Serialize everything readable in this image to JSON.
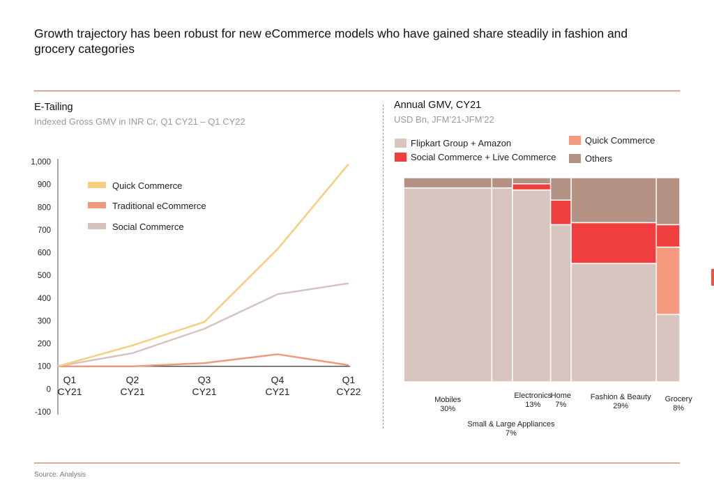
{
  "headline": "Growth trajectory has been robust for new eCommerce models who have gained share steadily in fashion and grocery categories",
  "source": "Source: Analysis",
  "colors": {
    "rule": "#e05a4a",
    "quick_commerce_line": "#f5cf7e",
    "traditional_line": "#f0987a",
    "social_line": "#d6c3bd",
    "flipkart_amazon": "#d9c5bf",
    "social_live": "#ee3e3e",
    "quick_commerce_block": "#f59a7e",
    "others": "#b39283"
  },
  "chart_data": [
    {
      "type": "line",
      "title": "E-Tailing",
      "subtitle": "Indexed Gross GMV in INR Cr, Q1 CY21 – Q1 CY22",
      "xlabel": "",
      "ylabel": "",
      "categories": [
        [
          "Q1",
          "CY21"
        ],
        [
          "Q2",
          "CY21"
        ],
        [
          "Q3",
          "CY21"
        ],
        [
          "Q4",
          "CY21"
        ],
        [
          "Q1",
          "CY22"
        ]
      ],
      "y_ticks": [
        "-100",
        "0",
        "100",
        "200",
        "300",
        "400",
        "500",
        "600",
        "700",
        "800",
        "900",
        "1,000"
      ],
      "ylim": [
        -100,
        1000
      ],
      "grid": false,
      "legend_position": "top-left",
      "series": [
        {
          "name": "Quick Commerce",
          "color": "#f5cf7e",
          "values": [
            100,
            192,
            295,
            615,
            990
          ]
        },
        {
          "name": "Traditional eCommerce",
          "color": "#f0987a",
          "values": [
            100,
            100,
            114,
            153,
            105
          ]
        },
        {
          "name": "Social Commerce",
          "color": "#d6c3bd",
          "values": [
            100,
            158,
            265,
            417,
            465
          ]
        }
      ]
    },
    {
      "type": "mekko",
      "title": "Annual GMV, CY21",
      "subtitle": "USD Bn, JFM’21-JFM’22",
      "legend": [
        {
          "name": "Flipkart Group + Amazon",
          "color": "#d9c5bf"
        },
        {
          "name": "Social Commerce + Live Commerce",
          "color": "#ee3e3e"
        },
        {
          "name": "Quick Commerce",
          "color": "#f59a7e"
        },
        {
          "name": "Others",
          "color": "#b39283"
        }
      ],
      "segment_order": [
        "Flipkart Group + Amazon",
        "Quick Commerce",
        "Social Commerce + Live Commerce",
        "Others"
      ],
      "categories": [
        {
          "name": "Mobiles",
          "share_label": "30%",
          "width": 30,
          "values": {
            "Flipkart Group + Amazon": 95,
            "Quick Commerce": 0,
            "Social Commerce + Live Commerce": 0,
            "Others": 5
          }
        },
        {
          "name": "Small & Large Appliances",
          "share_label": "7%",
          "width": 7,
          "values": {
            "Flipkart Group + Amazon": 95,
            "Quick Commerce": 0,
            "Social Commerce + Live Commerce": 0,
            "Others": 5
          }
        },
        {
          "name": "Electronics",
          "share_label": "13%",
          "width": 13,
          "values": {
            "Flipkart Group + Amazon": 94,
            "Quick Commerce": 0,
            "Social Commerce + Live Commerce": 3,
            "Others": 3
          }
        },
        {
          "name": "Home",
          "share_label": "7%",
          "width": 7,
          "values": {
            "Flipkart Group + Amazon": 77,
            "Quick Commerce": 0,
            "Social Commerce + Live Commerce": 12,
            "Others": 11
          }
        },
        {
          "name": "Fashion & Beauty",
          "share_label": "29%",
          "width": 29,
          "values": {
            "Flipkart Group + Amazon": 58,
            "Quick Commerce": 0,
            "Social Commerce + Live Commerce": 20,
            "Others": 22
          }
        },
        {
          "name": "Grocery",
          "share_label": "8%",
          "width": 8,
          "values": {
            "Flipkart Group + Amazon": 33,
            "Quick Commerce": 33,
            "Social Commerce + Live Commerce": 11,
            "Others": 23
          }
        }
      ]
    }
  ]
}
